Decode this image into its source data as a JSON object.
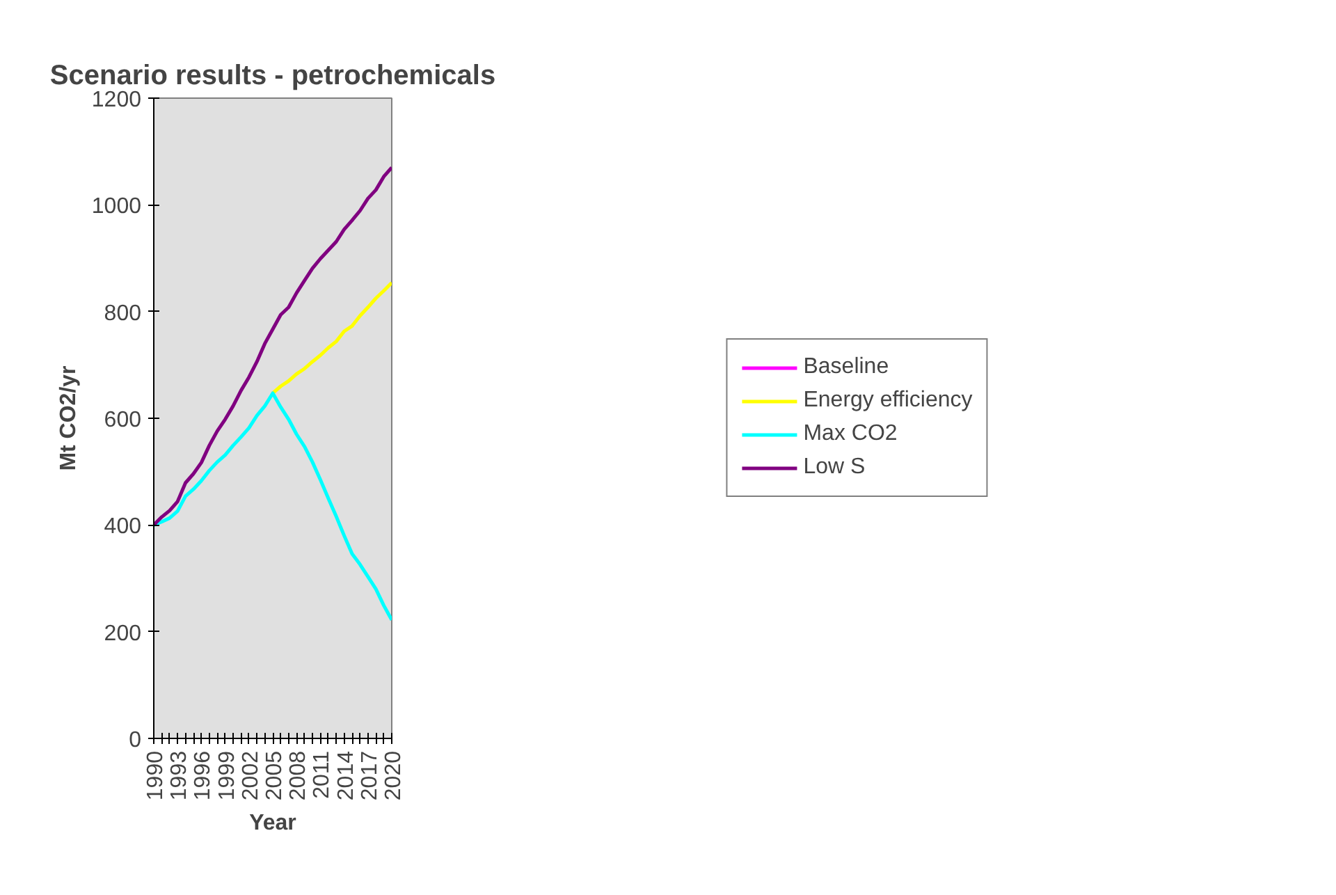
{
  "chart_data": {
    "type": "line",
    "title": "Scenario results - petrochemicals",
    "xlabel": "Year",
    "ylabel": "Mt CO2/yr",
    "x": [
      1990,
      1991,
      1992,
      1993,
      1994,
      1995,
      1996,
      1997,
      1998,
      1999,
      2000,
      2001,
      2002,
      2003,
      2004,
      2005,
      2006,
      2007,
      2008,
      2009,
      2010,
      2011,
      2012,
      2013,
      2014,
      2015,
      2016,
      2017,
      2018,
      2019,
      2020
    ],
    "series": [
      {
        "name": "Baseline",
        "color": "#ff00ff",
        "values": [
          null,
          null,
          null,
          null,
          null,
          null,
          null,
          null,
          null,
          null,
          null,
          null,
          null,
          null,
          null,
          null,
          null,
          null,
          null,
          null,
          null,
          null,
          null,
          null,
          null,
          null,
          null,
          null,
          null,
          null,
          null
        ]
      },
      {
        "name": "Energy efficiency",
        "color": "#ffff00",
        "values": [
          null,
          null,
          null,
          null,
          null,
          null,
          null,
          null,
          null,
          null,
          null,
          null,
          null,
          null,
          null,
          647,
          660,
          670,
          683,
          693,
          706,
          718,
          732,
          744,
          763,
          773,
          792,
          808,
          825,
          839,
          854
        ]
      },
      {
        "name": "Max CO2",
        "color": "#00ffff",
        "values": [
          400,
          406,
          413,
          426,
          454,
          467,
          483,
          502,
          518,
          531,
          549,
          565,
          582,
          605,
          623,
          647,
          621,
          598,
          570,
          547,
          518,
          485,
          450,
          416,
          380,
          346,
          326,
          303,
          280,
          249,
          222
        ]
      },
      {
        "name": "Low S",
        "color": "#800080",
        "values": [
          400,
          415,
          427,
          444,
          479,
          496,
          517,
          549,
          576,
          598,
          623,
          652,
          677,
          706,
          740,
          767,
          794,
          808,
          835,
          858,
          881,
          899,
          915,
          931,
          954,
          971,
          989,
          1012,
          1028,
          1053,
          1070
        ]
      }
    ],
    "xlim": [
      1990,
      2020
    ],
    "xticks": [
      1990,
      {
        "value": 1991,
        "label": null
      },
      {
        "value": 1992,
        "label": null
      },
      1993,
      {
        "value": 1994,
        "label": null
      },
      {
        "value": 1995,
        "label": null
      },
      1996,
      {
        "value": 1997,
        "label": null
      },
      {
        "value": 1998,
        "label": null
      },
      1999,
      {
        "value": 2000,
        "label": null
      },
      {
        "value": 2001,
        "label": null
      },
      2002,
      {
        "value": 2003,
        "label": null
      },
      {
        "value": 2004,
        "label": null
      },
      2005,
      {
        "value": 2006,
        "label": null
      },
      {
        "value": 2007,
        "label": null
      },
      2008,
      {
        "value": 2009,
        "label": null
      },
      {
        "value": 2010,
        "label": null
      },
      2011,
      {
        "value": 2012,
        "label": null
      },
      {
        "value": 2013,
        "label": null
      },
      2014,
      {
        "value": 2015,
        "label": null
      },
      {
        "value": 2016,
        "label": null
      },
      2017,
      {
        "value": 2018,
        "label": null
      },
      {
        "value": 2019,
        "label": null
      },
      2020
    ],
    "ylim": [
      0,
      1200
    ],
    "yticks": [
      0,
      200,
      400,
      600,
      800,
      1000,
      1200
    ],
    "grid": false,
    "legend": "right",
    "marker": "none",
    "line_style": "solid"
  }
}
